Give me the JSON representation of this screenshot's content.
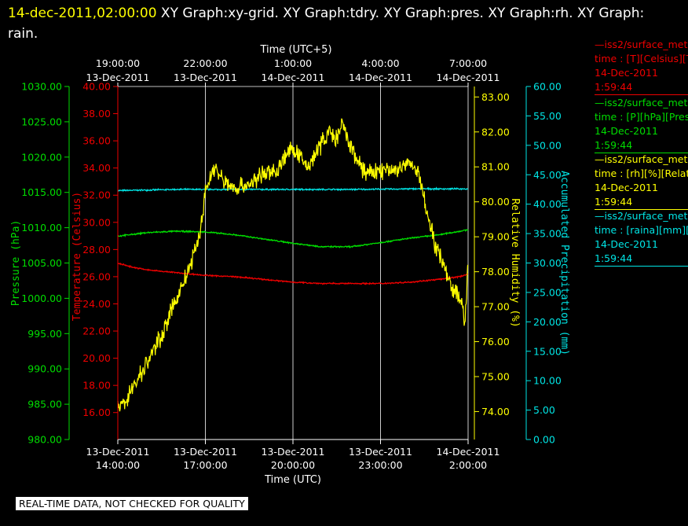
{
  "title": {
    "date": "14-dec-2011,02:00:00",
    "graphs": "XY Graph:xy-grid.  XY Graph:tdry.  XY Graph:pres.  XY Graph:rh.  XY Graph: rain."
  },
  "colors": {
    "pressure": "#00dd00",
    "temperature": "#ee0000",
    "humidity": "#ffff00",
    "precip": "#00e5e5",
    "grid": "#ffffff"
  },
  "legend": [
    {
      "line1": "—iss2/surface_met",
      "line2": "time : [T][Celsius][T",
      "line3": "14-Dec-2011",
      "line4": "1:59:44"
    },
    {
      "line1": "—iss2/surface_met",
      "line2": "time : [P][hPa][Pres",
      "line3": "14-Dec-2011",
      "line4": "1:59:44"
    },
    {
      "line1": "—iss2/surface_met",
      "line2": "time : [rh][%][Relati",
      "line3": "14-Dec-2011",
      "line4": "1:59:44"
    },
    {
      "line1": "—iss2/surface_met",
      "line2": "time : [raina][mm][A",
      "line3": "14-Dec-2011",
      "line4": "1:59:44"
    }
  ],
  "footer": "REAL-TIME DATA, NOT CHECKED FOR QUALITY",
  "chart_data": {
    "type": "line",
    "x_bottom_label": "Time (UTC)",
    "x_top_label": "Time (UTC+5)",
    "x_bottom_ticks": [
      {
        "hours": 0,
        "date": "13-Dec-2011",
        "time": "14:00:00"
      },
      {
        "hours": 3,
        "date": "13-Dec-2011",
        "time": "17:00:00"
      },
      {
        "hours": 6,
        "date": "13-Dec-2011",
        "time": "20:00:00"
      },
      {
        "hours": 9,
        "date": "13-Dec-2011",
        "time": "23:00:00"
      },
      {
        "hours": 12,
        "date": "14-Dec-2011",
        "time": "2:00:00"
      }
    ],
    "x_top_ticks": [
      {
        "hours": 0,
        "time": "19:00:00",
        "date": "13-Dec-2011"
      },
      {
        "hours": 3,
        "time": "22:00:00",
        "date": "13-Dec-2011"
      },
      {
        "hours": 6,
        "time": "1:00:00",
        "date": "14-Dec-2011"
      },
      {
        "hours": 9,
        "time": "4:00:00",
        "date": "14-Dec-2011"
      },
      {
        "hours": 12,
        "time": "7:00:00",
        "date": "14-Dec-2011"
      }
    ],
    "xlim": [
      0,
      12
    ],
    "grid": "vertical",
    "axes": {
      "pressure": {
        "label": "Pressure (hPa)",
        "range": [
          980,
          1030
        ],
        "ticks": [
          "980.00",
          "985.00",
          "990.00",
          "995.00",
          "1000.00",
          "1005.00",
          "1010.00",
          "1015.00",
          "1020.00",
          "1025.00",
          "1030.00"
        ]
      },
      "temperature": {
        "label": "Temperature (Celsius)",
        "range": [
          15,
          40
        ],
        "ticks": [
          "16.00",
          "18.00",
          "20.00",
          "22.00",
          "24.00",
          "26.00",
          "28.00",
          "30.00",
          "32.00",
          "34.00",
          "36.00",
          "38.00",
          "40.00"
        ]
      },
      "humidity": {
        "label": "Relative Humidity (%)",
        "range": [
          73.2,
          83.3
        ],
        "ticks": [
          "74.00",
          "75.00",
          "76.00",
          "77.00",
          "78.00",
          "79.00",
          "80.00",
          "81.00",
          "82.00",
          "83.00"
        ]
      },
      "precip": {
        "label": "Accumulated Precipitation (mm)",
        "range": [
          0,
          60
        ],
        "ticks": [
          "0.00",
          "5.00",
          "10.00",
          "15.00",
          "20.00",
          "25.00",
          "30.00",
          "35.00",
          "40.00",
          "45.00",
          "50.00",
          "55.00",
          "60.00"
        ]
      }
    },
    "series": [
      {
        "axis": "precip",
        "color_key": "precip",
        "noise": 0.1,
        "x": [
          0,
          2,
          4,
          6,
          8,
          10,
          12
        ],
        "y": [
          42.3,
          42.5,
          42.5,
          42.5,
          42.5,
          42.6,
          42.6
        ]
      },
      {
        "axis": "pressure",
        "color_key": "pressure",
        "noise": 0.08,
        "x": [
          0,
          1,
          2,
          3,
          4,
          5,
          6,
          7,
          8,
          9,
          10,
          11,
          12
        ],
        "y": [
          1008.8,
          1009.3,
          1009.5,
          1009.4,
          1009.0,
          1008.4,
          1007.8,
          1007.3,
          1007.3,
          1007.9,
          1008.5,
          1009.0,
          1009.7
        ]
      },
      {
        "axis": "temperature",
        "color_key": "temperature",
        "noise": 0.04,
        "x": [
          0,
          0.5,
          1,
          2,
          3,
          4,
          5,
          6,
          7,
          8,
          9,
          10,
          11,
          11.7,
          12
        ],
        "y": [
          27.0,
          26.7,
          26.5,
          26.3,
          26.1,
          26.0,
          25.8,
          25.6,
          25.5,
          25.5,
          25.5,
          25.6,
          25.8,
          26.0,
          26.2
        ]
      },
      {
        "axis": "humidity",
        "color_key": "humidity",
        "noise": 0.22,
        "x": [
          0,
          0.3,
          0.6,
          1,
          1.5,
          2,
          2.5,
          2.8,
          3,
          3.3,
          3.6,
          4,
          4.5,
          5,
          5.5,
          5.7,
          6,
          6.5,
          7,
          7.2,
          7.5,
          7.7,
          8,
          8.5,
          9,
          9.5,
          10,
          10.3,
          10.6,
          10.9,
          11.2,
          11.4,
          11.6,
          11.8,
          11.9,
          12
        ],
        "y": [
          74.0,
          74.4,
          74.8,
          75.4,
          76.2,
          77.2,
          78.2,
          79.0,
          80.3,
          81.0,
          80.6,
          80.4,
          80.5,
          80.8,
          80.9,
          81.3,
          81.5,
          81.0,
          81.7,
          82.0,
          81.8,
          82.2,
          81.5,
          80.8,
          80.9,
          80.9,
          81.1,
          80.8,
          79.7,
          78.7,
          78.2,
          77.6,
          77.4,
          77.0,
          76.6,
          78.3
        ]
      }
    ]
  }
}
